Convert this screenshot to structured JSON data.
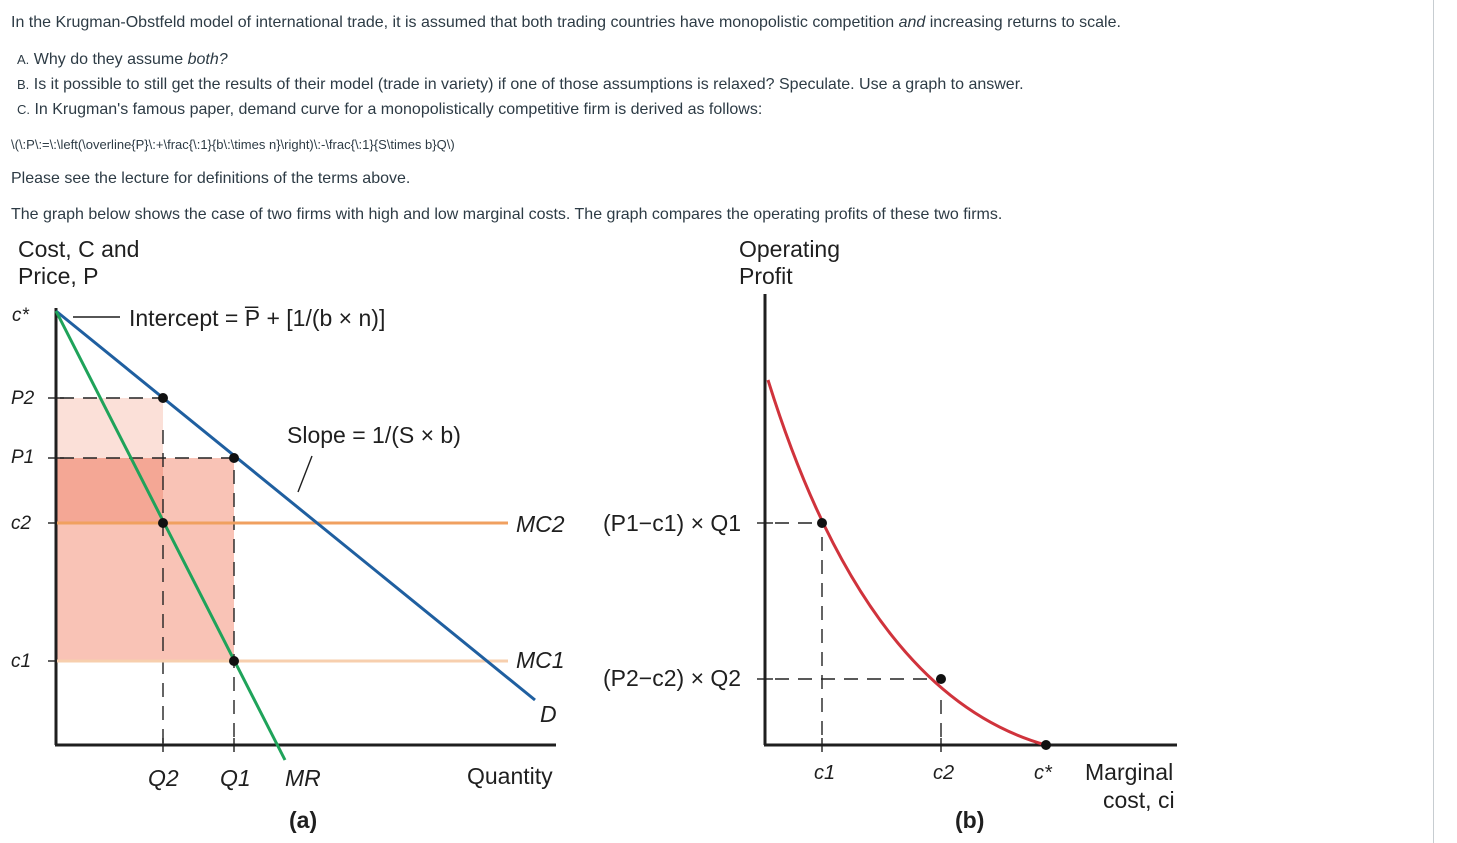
{
  "question": {
    "intro_a": "In the Krugman-Obstfeld model of international trade, it is assumed that both trading countries have monopolistic competition ",
    "intro_em": "and",
    "intro_b": " increasing returns to scale.",
    "items": [
      {
        "letter": "A.",
        "text_a": "Why do they assume ",
        "text_em": "both?",
        "text_b": ""
      },
      {
        "letter": "B.",
        "text_a": "Is it possible to still get the results of their model (trade in variety) if one of those assumptions is relaxed? Speculate. Use a graph to answer.",
        "text_em": "",
        "text_b": ""
      },
      {
        "letter": "C.",
        "text_a": "In Krugman's famous paper, demand curve for a monopolistically competitive firm is derived as follows:",
        "text_em": "",
        "text_b": ""
      }
    ],
    "latex": "\\(\\:P\\:=\\:\\left(\\overline{P}\\:+\\frac{\\:1}{b\\:\\times n}\\right)\\:-\\frac{\\:1}{S\\times b}Q\\)",
    "see_lecture": "Please see the lecture for definitions of the terms above.",
    "graph_intro": "The graph below shows the case of two firms with high and low marginal costs. The graph compares the operating profits of these two firms."
  },
  "figure": {
    "panel_a": {
      "y_label_1": "Cost, C and",
      "y_label_2": "Price, P",
      "y_ticks": [
        "c*",
        "P2",
        "P1",
        "c2",
        "c1"
      ],
      "intercept_label": "Intercept = P̅ + [1/(b × n)]",
      "slope_label": "Slope = 1/(S × b)",
      "mc2_label": "MC2",
      "mc1_label": "MC1",
      "d_label": "D",
      "x_ticks": [
        "Q2",
        "Q1"
      ],
      "mr_label": "MR",
      "x_label": "Quantity",
      "caption": "(a)",
      "colors": {
        "demand": "#1f5fa0",
        "mr": "#1fa35a",
        "mc2": "#f0a060",
        "mc1": "#f7cfae",
        "area_dark": "#f4a795",
        "area_light": "#f9c3b6",
        "area_top": "#fbe0d8"
      }
    },
    "panel_b": {
      "y_label_1": "Operating",
      "y_label_2": "Profit",
      "profit1_label": "(P1−c1) × Q1",
      "profit2_label": "(P2−c2) × Q2",
      "x_ticks": [
        "c1",
        "c2",
        "c*"
      ],
      "x_label_1": "Marginal",
      "x_label_2": "cost, ci",
      "caption": "(b)",
      "colors": {
        "curve": "#d0333c"
      }
    }
  }
}
